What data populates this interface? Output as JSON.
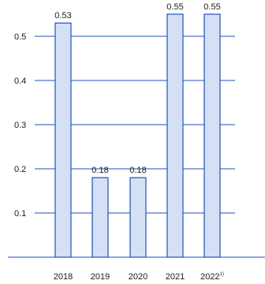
{
  "chart_data": {
    "type": "bar",
    "title": "",
    "xlabel": "",
    "ylabel": "",
    "categories": [
      "2018",
      "2019",
      "2020",
      "2021",
      "2022"
    ],
    "category_footnotes": [
      "",
      "",
      "",
      "",
      "1)"
    ],
    "values": [
      0.53,
      0.18,
      0.18,
      0.55,
      0.55
    ],
    "data_labels": [
      "0.53",
      "0.18",
      "0.18",
      "0.55",
      "0.55"
    ],
    "yticks": [
      0.1,
      0.2,
      0.3,
      0.4,
      0.5
    ],
    "ytick_labels": [
      "0.1",
      "0.2",
      "0.3",
      "0.4",
      "0.5"
    ],
    "ylim": [
      0,
      0.6
    ],
    "grid": true,
    "colors": {
      "bar_fill": "#d6e0f5",
      "bar_stroke": "#1f4fbf",
      "grid": "#1f4fbf",
      "axis": "#1f4fbf",
      "text": "#1a1a1a"
    }
  }
}
